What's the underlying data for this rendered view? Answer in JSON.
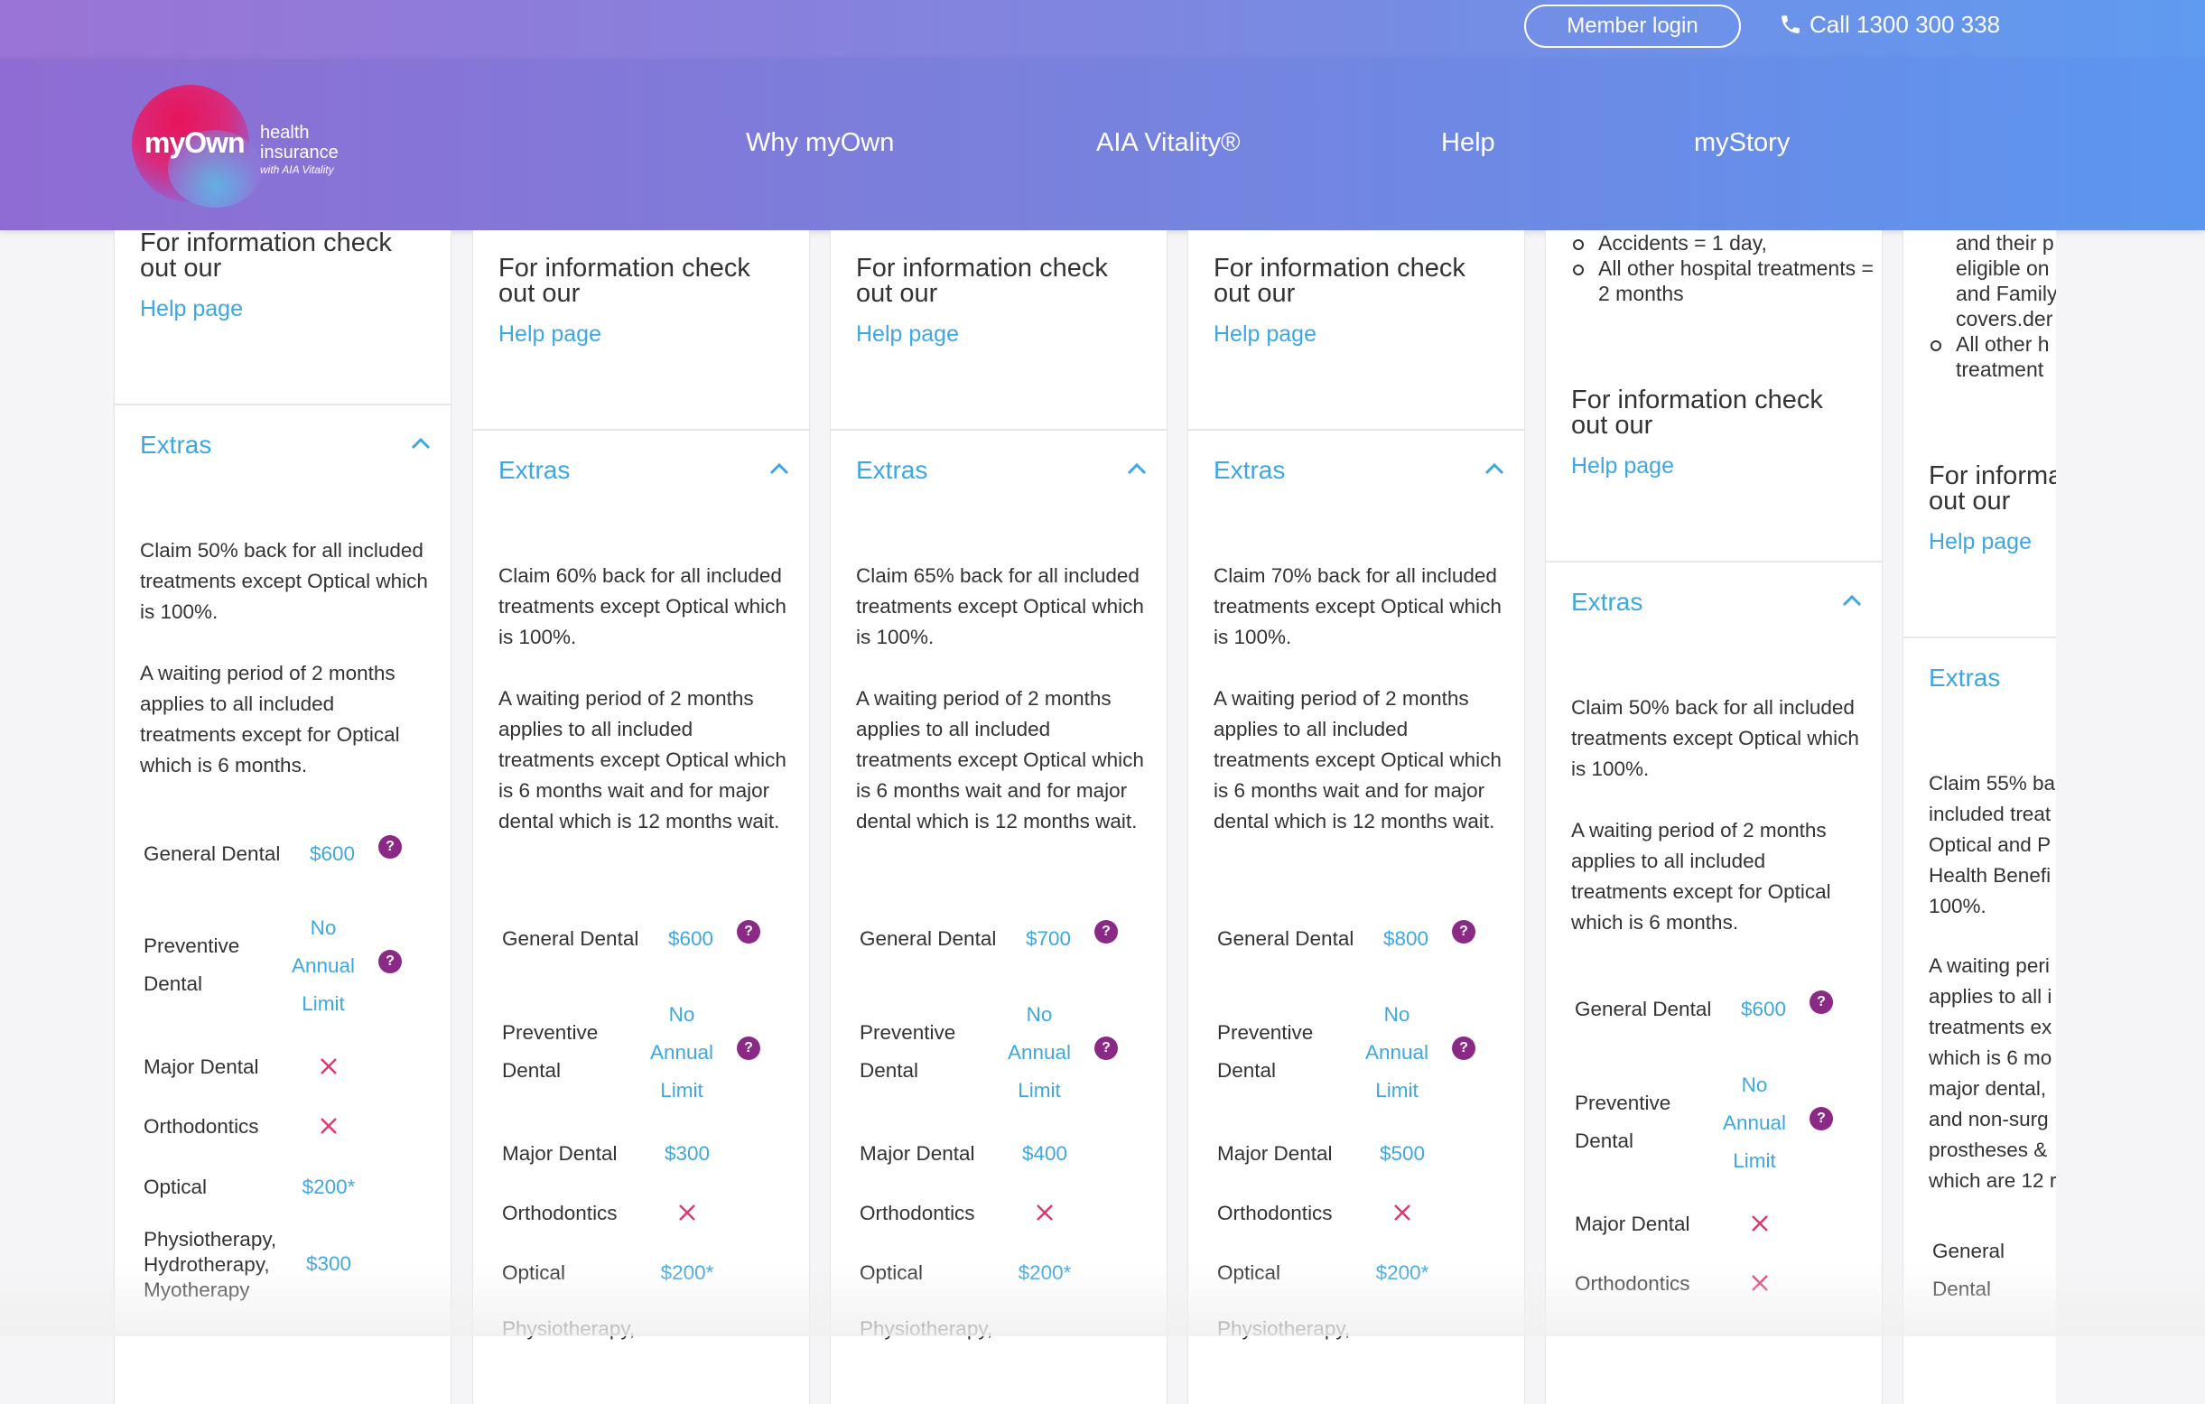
{
  "header": {
    "member_login": "Member login",
    "call": "Call 1300 300 338",
    "logo": {
      "brand": "myOwn",
      "line1": "health",
      "line2": "insurance",
      "with": "with AIA Vitality"
    },
    "nav": [
      "Why myOwn",
      "AIA Vitality®",
      "Help",
      "myStory"
    ]
  },
  "common": {
    "info_text": "For information check out our",
    "help_link": "Help page",
    "extras": "Extras"
  },
  "cards": [
    {
      "claim": "Claim 50% back for all included treatments except Optical which is 100%.",
      "waiting": "A waiting period of 2 months applies to all included treatments except for Optical which is 6 months.",
      "general_dental": "$600",
      "preventive": "No Annual Limit",
      "major": "",
      "optical": "$200*",
      "physio_label": "Physiotherapy, Hydrotherapy, Myotherapy",
      "physio": "$300"
    },
    {
      "claim": "Claim 60% back for all included treatments except Optical which is 100%.",
      "waiting": "A waiting period of 2 months applies to all included treatments except Optical which is 6 months wait and for major dental which is 12 months wait.",
      "general_dental": "$600",
      "preventive": "No Annual Limit",
      "major": "$300",
      "optical": "$200*",
      "physio_label": "Physiotherapy,"
    },
    {
      "claim": "Claim 65% back for all included treatments except Optical which is 100%.",
      "waiting": "A waiting period of 2 months applies to all included treatments except Optical which is 6 months wait and for major dental which is 12 months wait.",
      "general_dental": "$700",
      "preventive": "No Annual Limit",
      "major": "$400",
      "optical": "$200*",
      "physio_label": "Physiotherapy,"
    },
    {
      "claim": "Claim 70% back for all included treatments except Optical which is 100%.",
      "waiting": "A waiting period of 2 months applies to all included treatments except Optical which is 6 months wait and for major dental which is 12 months wait.",
      "general_dental": "$800",
      "preventive": "No Annual Limit",
      "major": "$500",
      "optical": "$200*",
      "physio_label": "Physiotherapy,"
    },
    {
      "bullets": [
        "Accidents = 1 day,",
        "All other hospital treatments = 2 months"
      ],
      "claim": "Claim 50% back for all included treatments except Optical which is 100%.",
      "waiting": "A waiting period of 2 months applies to all included treatments except for Optical which is 6 months.",
      "general_dental": "$600",
      "preventive": "No Annual Limit",
      "major": ""
    },
    {
      "bullet_lines": [
        "and their p",
        "eligible on",
        "and Family",
        "covers.der"
      ],
      "bullet2": [
        "All other h",
        "treatment"
      ],
      "info_lines": [
        "For informa",
        "out our"
      ],
      "claim_lines": [
        "Claim 55% ba",
        "included treat",
        "Optical and P",
        "Health Benefi",
        "100%."
      ],
      "waiting_lines": [
        "A waiting peri",
        "applies to all i",
        "treatments ex",
        "which is 6 mo",
        "major dental,",
        "and non-surg",
        "prostheses &",
        "which are 12 r"
      ],
      "general_dental_label": [
        "General",
        "Dental"
      ]
    }
  ],
  "labels": {
    "general_dental": "General Dental",
    "preventive": "Preventive Dental",
    "major": "Major Dental",
    "orthodontics": "Orthodontics",
    "optical": "Optical"
  }
}
